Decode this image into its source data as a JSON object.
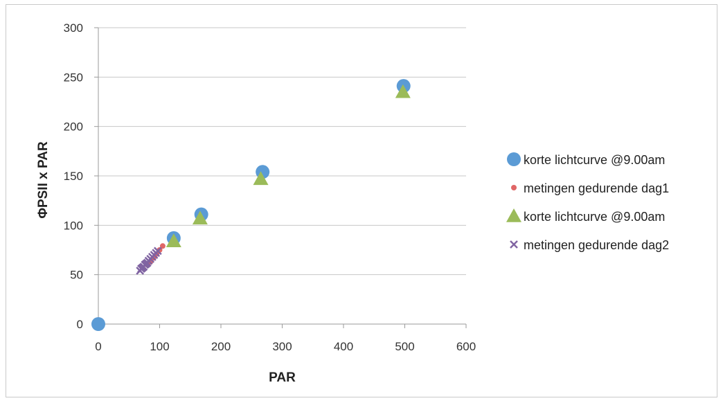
{
  "chart_data": {
    "type": "scatter",
    "title": "",
    "xlabel": "PAR",
    "ylabel": "ΦPSII x PAR",
    "xlim": [
      0,
      600
    ],
    "ylim": [
      0,
      300
    ],
    "x_ticks": [
      0,
      100,
      200,
      300,
      400,
      500,
      600
    ],
    "y_ticks": [
      0,
      50,
      100,
      150,
      200,
      250,
      300
    ],
    "grid": "horizontal",
    "legend_position": "right",
    "series": [
      {
        "name": "korte lichtcurve @9.00am",
        "marker": "circle",
        "color": "#5b9bd5",
        "points": [
          [
            0,
            0
          ],
          [
            123,
            87
          ],
          [
            168,
            111
          ],
          [
            268,
            154
          ],
          [
            498,
            241
          ]
        ]
      },
      {
        "name": "metingen gedurende dag1",
        "marker": "dot",
        "color": "#e06666",
        "points": [
          [
            0,
            1
          ],
          [
            80,
            60
          ],
          [
            85,
            63
          ],
          [
            90,
            67
          ],
          [
            95,
            71
          ],
          [
            100,
            75
          ],
          [
            105,
            79
          ]
        ]
      },
      {
        "name": "korte lichtcurve @9.00am",
        "marker": "triangle",
        "color": "#9bbb59",
        "points": [
          [
            123,
            84
          ],
          [
            166,
            107
          ],
          [
            265,
            147
          ],
          [
            497,
            235
          ]
        ]
      },
      {
        "name": "metingen gedurende dag2",
        "marker": "x",
        "color": "#8064a2",
        "points": [
          [
            68,
            54
          ],
          [
            70,
            56
          ],
          [
            72,
            57
          ],
          [
            74,
            58
          ],
          [
            76,
            60
          ],
          [
            78,
            61
          ],
          [
            80,
            62
          ],
          [
            82,
            64
          ],
          [
            85,
            66
          ],
          [
            88,
            68
          ],
          [
            91,
            70
          ],
          [
            94,
            72
          ],
          [
            97,
            74
          ]
        ]
      }
    ]
  }
}
